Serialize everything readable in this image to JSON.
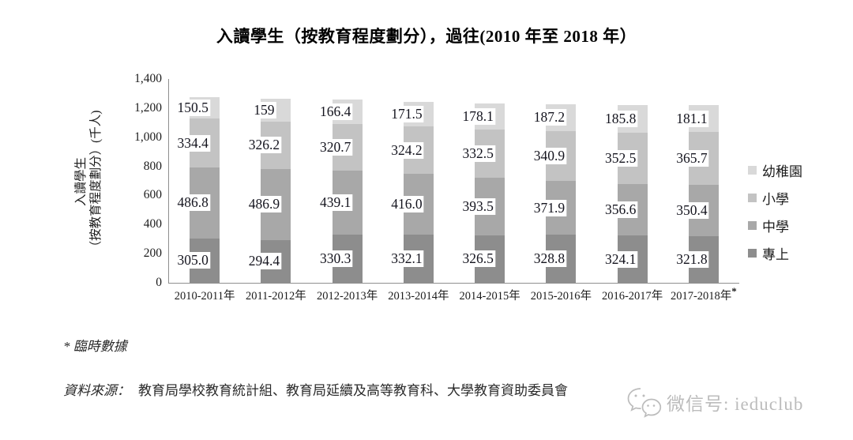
{
  "title": "入讀學生（按教育程度劃分），過往(2010 年至 2018 年）",
  "chart_data": {
    "type": "bar",
    "stacked": true,
    "title": "入讀學生（按教育程度劃分），過往(2010 年至 2018 年）",
    "ylabel_line1": "入讀學生",
    "ylabel_line2": "（按教育程度劃分）(千人)",
    "ylim": [
      0,
      1400
    ],
    "ytick_step": 200,
    "ytick_labels": [
      "0",
      "200",
      "400",
      "600",
      "800",
      "1,000",
      "1,200",
      "1,400"
    ],
    "grid": false,
    "legend_position": "right",
    "legend": [
      "幼稚園",
      "小學",
      "中學",
      "專上"
    ],
    "categories": [
      "2010-2011年",
      "2011-2012年",
      "2012-2013年",
      "2013-2014年",
      "2014-2015年",
      "2015-2016年",
      "2016-2017年",
      "2017-2018年"
    ],
    "last_category_marker": "*",
    "series": [
      {
        "name": "專上",
        "color": "#8d8d8d",
        "values": [
          305.0,
          294.4,
          330.3,
          332.1,
          326.5,
          328.8,
          324.1,
          321.8
        ],
        "labels": [
          "305.0",
          "294.4",
          "330.3",
          "332.1",
          "326.5",
          "328.8",
          "324.1",
          "321.8"
        ]
      },
      {
        "name": "中學",
        "color": "#a8a8a8",
        "values": [
          486.8,
          486.9,
          439.1,
          416.0,
          393.5,
          371.9,
          356.6,
          350.4
        ],
        "labels": [
          "486.8",
          "486.9",
          "439.1",
          "416.0",
          "393.5",
          "371.9",
          "356.6",
          "350.4"
        ]
      },
      {
        "name": "小學",
        "color": "#c3c3c3",
        "values": [
          334.4,
          326.2,
          320.7,
          324.2,
          332.5,
          340.9,
          352.5,
          365.7
        ],
        "labels": [
          "334.4",
          "326.2",
          "320.7",
          "324.2",
          "332.5",
          "340.9",
          "352.5",
          "365.7"
        ]
      },
      {
        "name": "幼稚園",
        "color": "#d9d9d9",
        "values": [
          150.5,
          159,
          166.4,
          171.5,
          178.1,
          187.2,
          185.8,
          181.1
        ],
        "labels": [
          "150.5",
          "159",
          "166.4",
          "171.5",
          "178.1",
          "187.2",
          "185.8",
          "181.1"
        ]
      }
    ]
  },
  "footnotes": {
    "provisional": "* 臨時數據",
    "source_label": "資料來源：",
    "source_text": "教育局學校教育統計組、教育局延續及高等教育科、大學教育資助委員會"
  },
  "watermark": {
    "label": "微信号: ieduclub",
    "icon": "wechat-icon"
  }
}
